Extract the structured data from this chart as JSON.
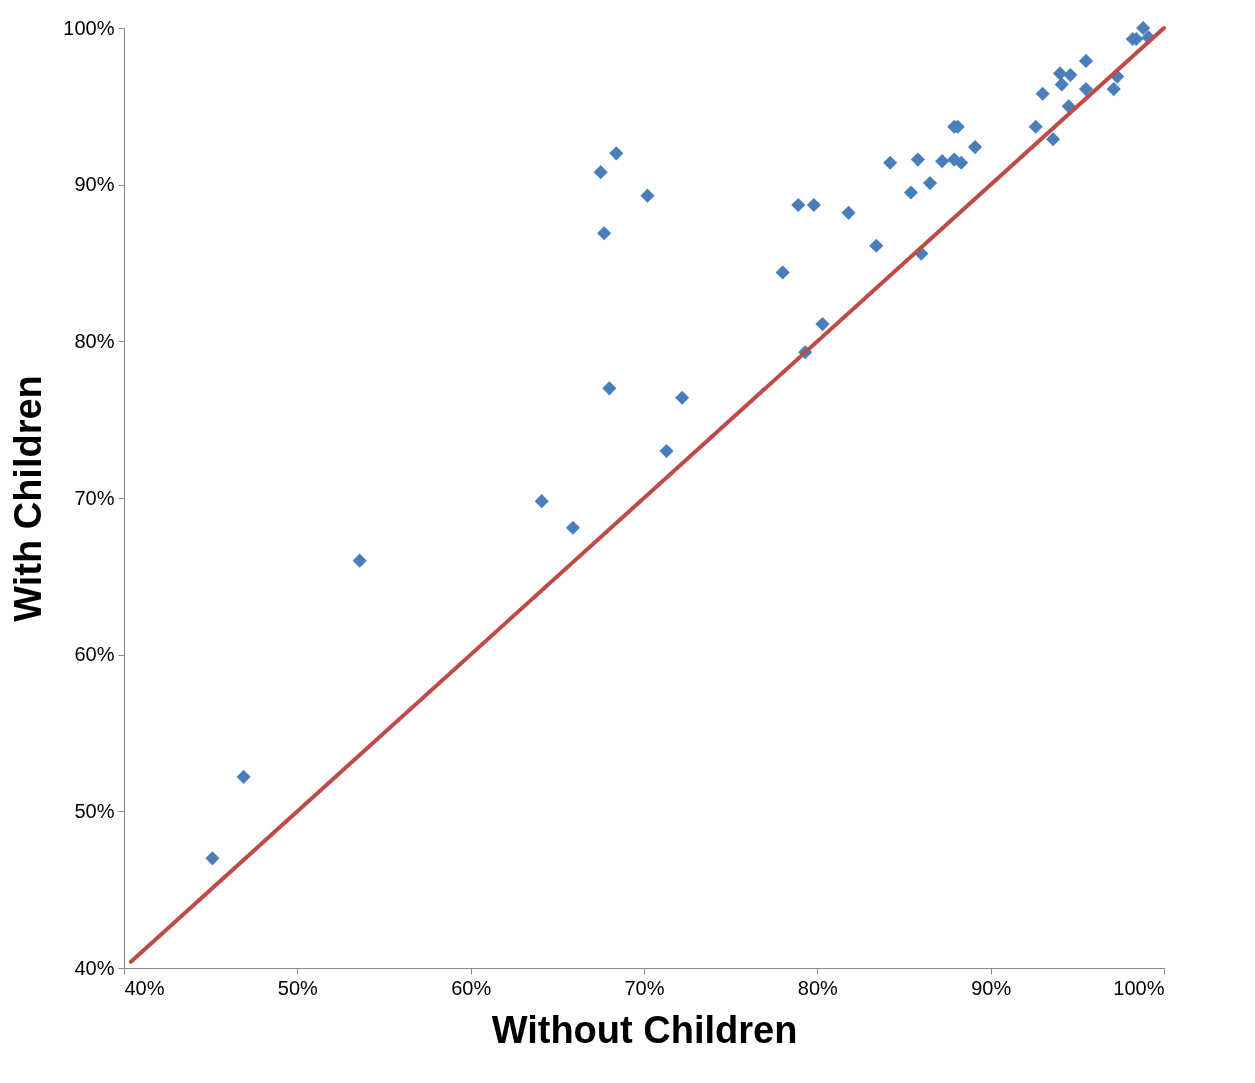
{
  "chart_data": {
    "type": "scatter",
    "xlabel": "Without Children",
    "ylabel": "With Children",
    "grid": false,
    "xlim": [
      40,
      100
    ],
    "ylim": [
      40,
      100
    ],
    "xticks": [
      {
        "value": 40,
        "label": "40%"
      },
      {
        "value": 50,
        "label": "50%"
      },
      {
        "value": 60,
        "label": "60%"
      },
      {
        "value": 70,
        "label": "70%"
      },
      {
        "value": 80,
        "label": "80%"
      },
      {
        "value": 90,
        "label": "90%"
      },
      {
        "value": 100,
        "label": "100%"
      }
    ],
    "yticks": [
      {
        "value": 40,
        "label": "40%"
      },
      {
        "value": 50,
        "label": "50%"
      },
      {
        "value": 60,
        "label": "60%"
      },
      {
        "value": 70,
        "label": "70%"
      },
      {
        "value": 80,
        "label": "80%"
      },
      {
        "value": 90,
        "label": "90%"
      },
      {
        "value": 100,
        "label": "100%"
      }
    ],
    "series": [
      {
        "marker": "diamond",
        "color": "#4a7ebb",
        "x": [
          45.1,
          46.9,
          53.6,
          64.1,
          65.9,
          67.5,
          68.4,
          67.7,
          68.0,
          70.2,
          71.3,
          72.2,
          78.0,
          78.9,
          79.8,
          79.3,
          80.3,
          81.8,
          83.4,
          84.2,
          85.4,
          85.8,
          86.0,
          86.5,
          87.2,
          87.9,
          87.9,
          88.1,
          88.3,
          89.1,
          92.6,
          93.0,
          93.6,
          94.0,
          94.1,
          94.5,
          94.6,
          95.5,
          95.5,
          97.1,
          97.3,
          98.2,
          98.4,
          98.8,
          99.1
        ],
        "values": [
          47.0,
          52.2,
          66.0,
          69.8,
          68.1,
          90.8,
          92.0,
          86.9,
          77.0,
          89.3,
          73.0,
          76.4,
          84.4,
          88.7,
          88.7,
          79.3,
          81.1,
          88.2,
          86.1,
          91.4,
          89.5,
          91.6,
          85.6,
          90.1,
          91.5,
          91.6,
          93.7,
          93.7,
          91.4,
          92.4,
          93.7,
          95.8,
          92.9,
          97.1,
          96.4,
          95.0,
          97.0,
          97.9,
          96.1,
          96.1,
          96.9,
          99.3,
          99.3,
          100.0,
          99.4
        ]
      },
      {
        "type": "line",
        "color": "#be4b48",
        "x": [
          40.4,
          100
        ],
        "values": [
          40.4,
          100
        ]
      }
    ]
  }
}
